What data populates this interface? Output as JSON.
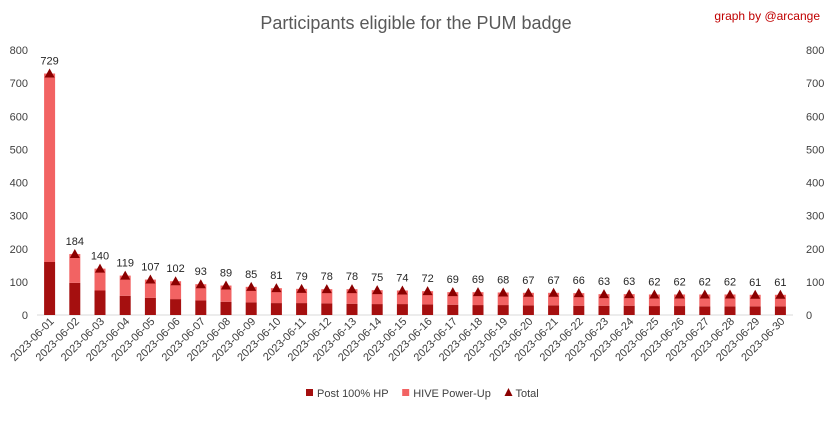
{
  "credit": "graph by @arcange",
  "colors": {
    "post_100_hp": "#a50f0f",
    "hive_power_up": "#f26363",
    "total_marker": "#8b0000",
    "credit": "#c00000",
    "gridline": "#d9d9d9",
    "axis_text": "#404040"
  },
  "chart_data": {
    "type": "bar",
    "stacked": true,
    "title": "Participants eligible for the PUM badge",
    "xlabel": "",
    "ylabel": "",
    "ylim": [
      0,
      800
    ],
    "yticks": [
      0,
      100,
      200,
      300,
      400,
      500,
      600,
      700,
      800
    ],
    "secondary_y_axis": true,
    "grid": false,
    "legend_position": "bottom",
    "categories": [
      "2023-06-01",
      "2023-06-02",
      "2023-06-03",
      "2023-06-04",
      "2023-06-05",
      "2023-06-06",
      "2023-06-07",
      "2023-06-08",
      "2023-06-09",
      "2023-06-10",
      "2023-06-11",
      "2023-06-12",
      "2023-06-13",
      "2023-06-14",
      "2023-06-15",
      "2023-06-16",
      "2023-06-17",
      "2023-06-18",
      "2023-06-19",
      "2023-06-20",
      "2023-06-21",
      "2023-06-22",
      "2023-06-23",
      "2023-06-24",
      "2023-06-25",
      "2023-06-26",
      "2023-06-27",
      "2023-06-28",
      "2023-06-29",
      "2023-06-30"
    ],
    "series": [
      {
        "name": "Post 100% HP",
        "type": "bar",
        "values": [
          160,
          97,
          74,
          58,
          52,
          48,
          44,
          40,
          38,
          36,
          36,
          35,
          34,
          33,
          33,
          32,
          31,
          30,
          30,
          29,
          29,
          28,
          28,
          28,
          27,
          27,
          26,
          26,
          26,
          26
        ]
      },
      {
        "name": "HIVE Power-Up",
        "type": "bar",
        "values": [
          569,
          87,
          66,
          61,
          55,
          54,
          49,
          49,
          47,
          45,
          43,
          43,
          44,
          42,
          41,
          40,
          38,
          39,
          38,
          38,
          38,
          38,
          35,
          35,
          35,
          35,
          36,
          36,
          35,
          35
        ]
      },
      {
        "name": "Total",
        "type": "marker",
        "values": [
          729,
          184,
          140,
          119,
          107,
          102,
          93,
          89,
          85,
          81,
          79,
          78,
          78,
          75,
          74,
          72,
          69,
          69,
          68,
          67,
          67,
          66,
          63,
          63,
          62,
          62,
          62,
          62,
          61,
          61
        ]
      }
    ]
  }
}
